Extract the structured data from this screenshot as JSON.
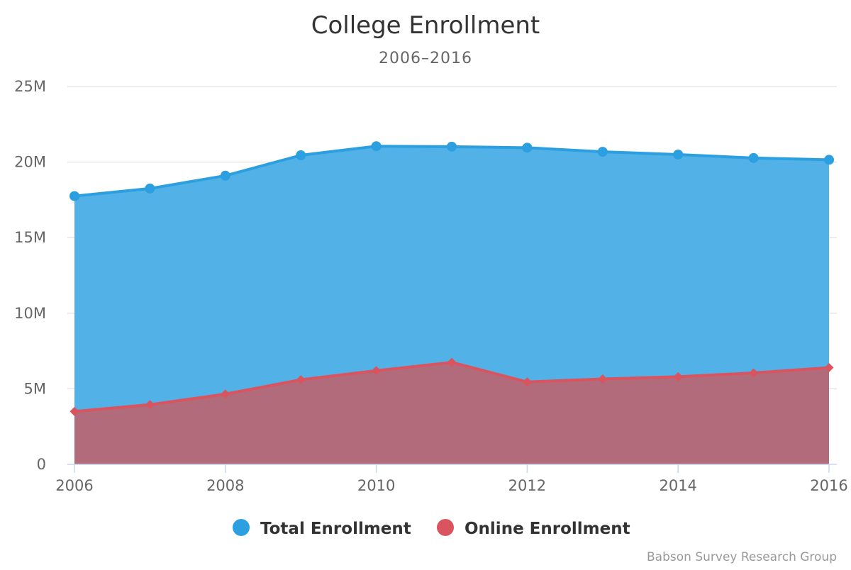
{
  "chart_data": {
    "type": "area",
    "title": "College Enrollment",
    "subtitle": "2006–2016",
    "x": [
      2006,
      2007,
      2008,
      2009,
      2010,
      2011,
      2012,
      2013,
      2014,
      2015,
      2016
    ],
    "x_tick_labels": [
      "2006",
      "2008",
      "2010",
      "2012",
      "2014",
      "2016"
    ],
    "x_tick_values": [
      2006,
      2008,
      2010,
      2012,
      2014,
      2016
    ],
    "y_tick_labels": [
      "0",
      "5M",
      "10M",
      "15M",
      "20M",
      "25M"
    ],
    "y_tick_values": [
      0,
      5000000,
      10000000,
      15000000,
      20000000,
      25000000
    ],
    "ylim": [
      0,
      25000000
    ],
    "xlim": [
      2006,
      2016
    ],
    "series": [
      {
        "name": "Total Enrollment",
        "color": "#2b9fe0",
        "fill": "#52b1e6",
        "marker": "circle",
        "values": [
          17750000,
          18250000,
          19100000,
          20450000,
          21050000,
          21020000,
          20950000,
          20680000,
          20500000,
          20270000,
          20150000
        ]
      },
      {
        "name": "Online Enrollment",
        "color": "#d9545e",
        "fill": "#b26b7b",
        "marker": "diamond",
        "values": [
          3500000,
          3950000,
          4650000,
          5600000,
          6200000,
          6750000,
          5450000,
          5650000,
          5800000,
          6050000,
          6400000
        ]
      }
    ],
    "legend": {
      "position": "bottom-center"
    },
    "credit": "Babson Survey Research Group",
    "grid": true
  }
}
